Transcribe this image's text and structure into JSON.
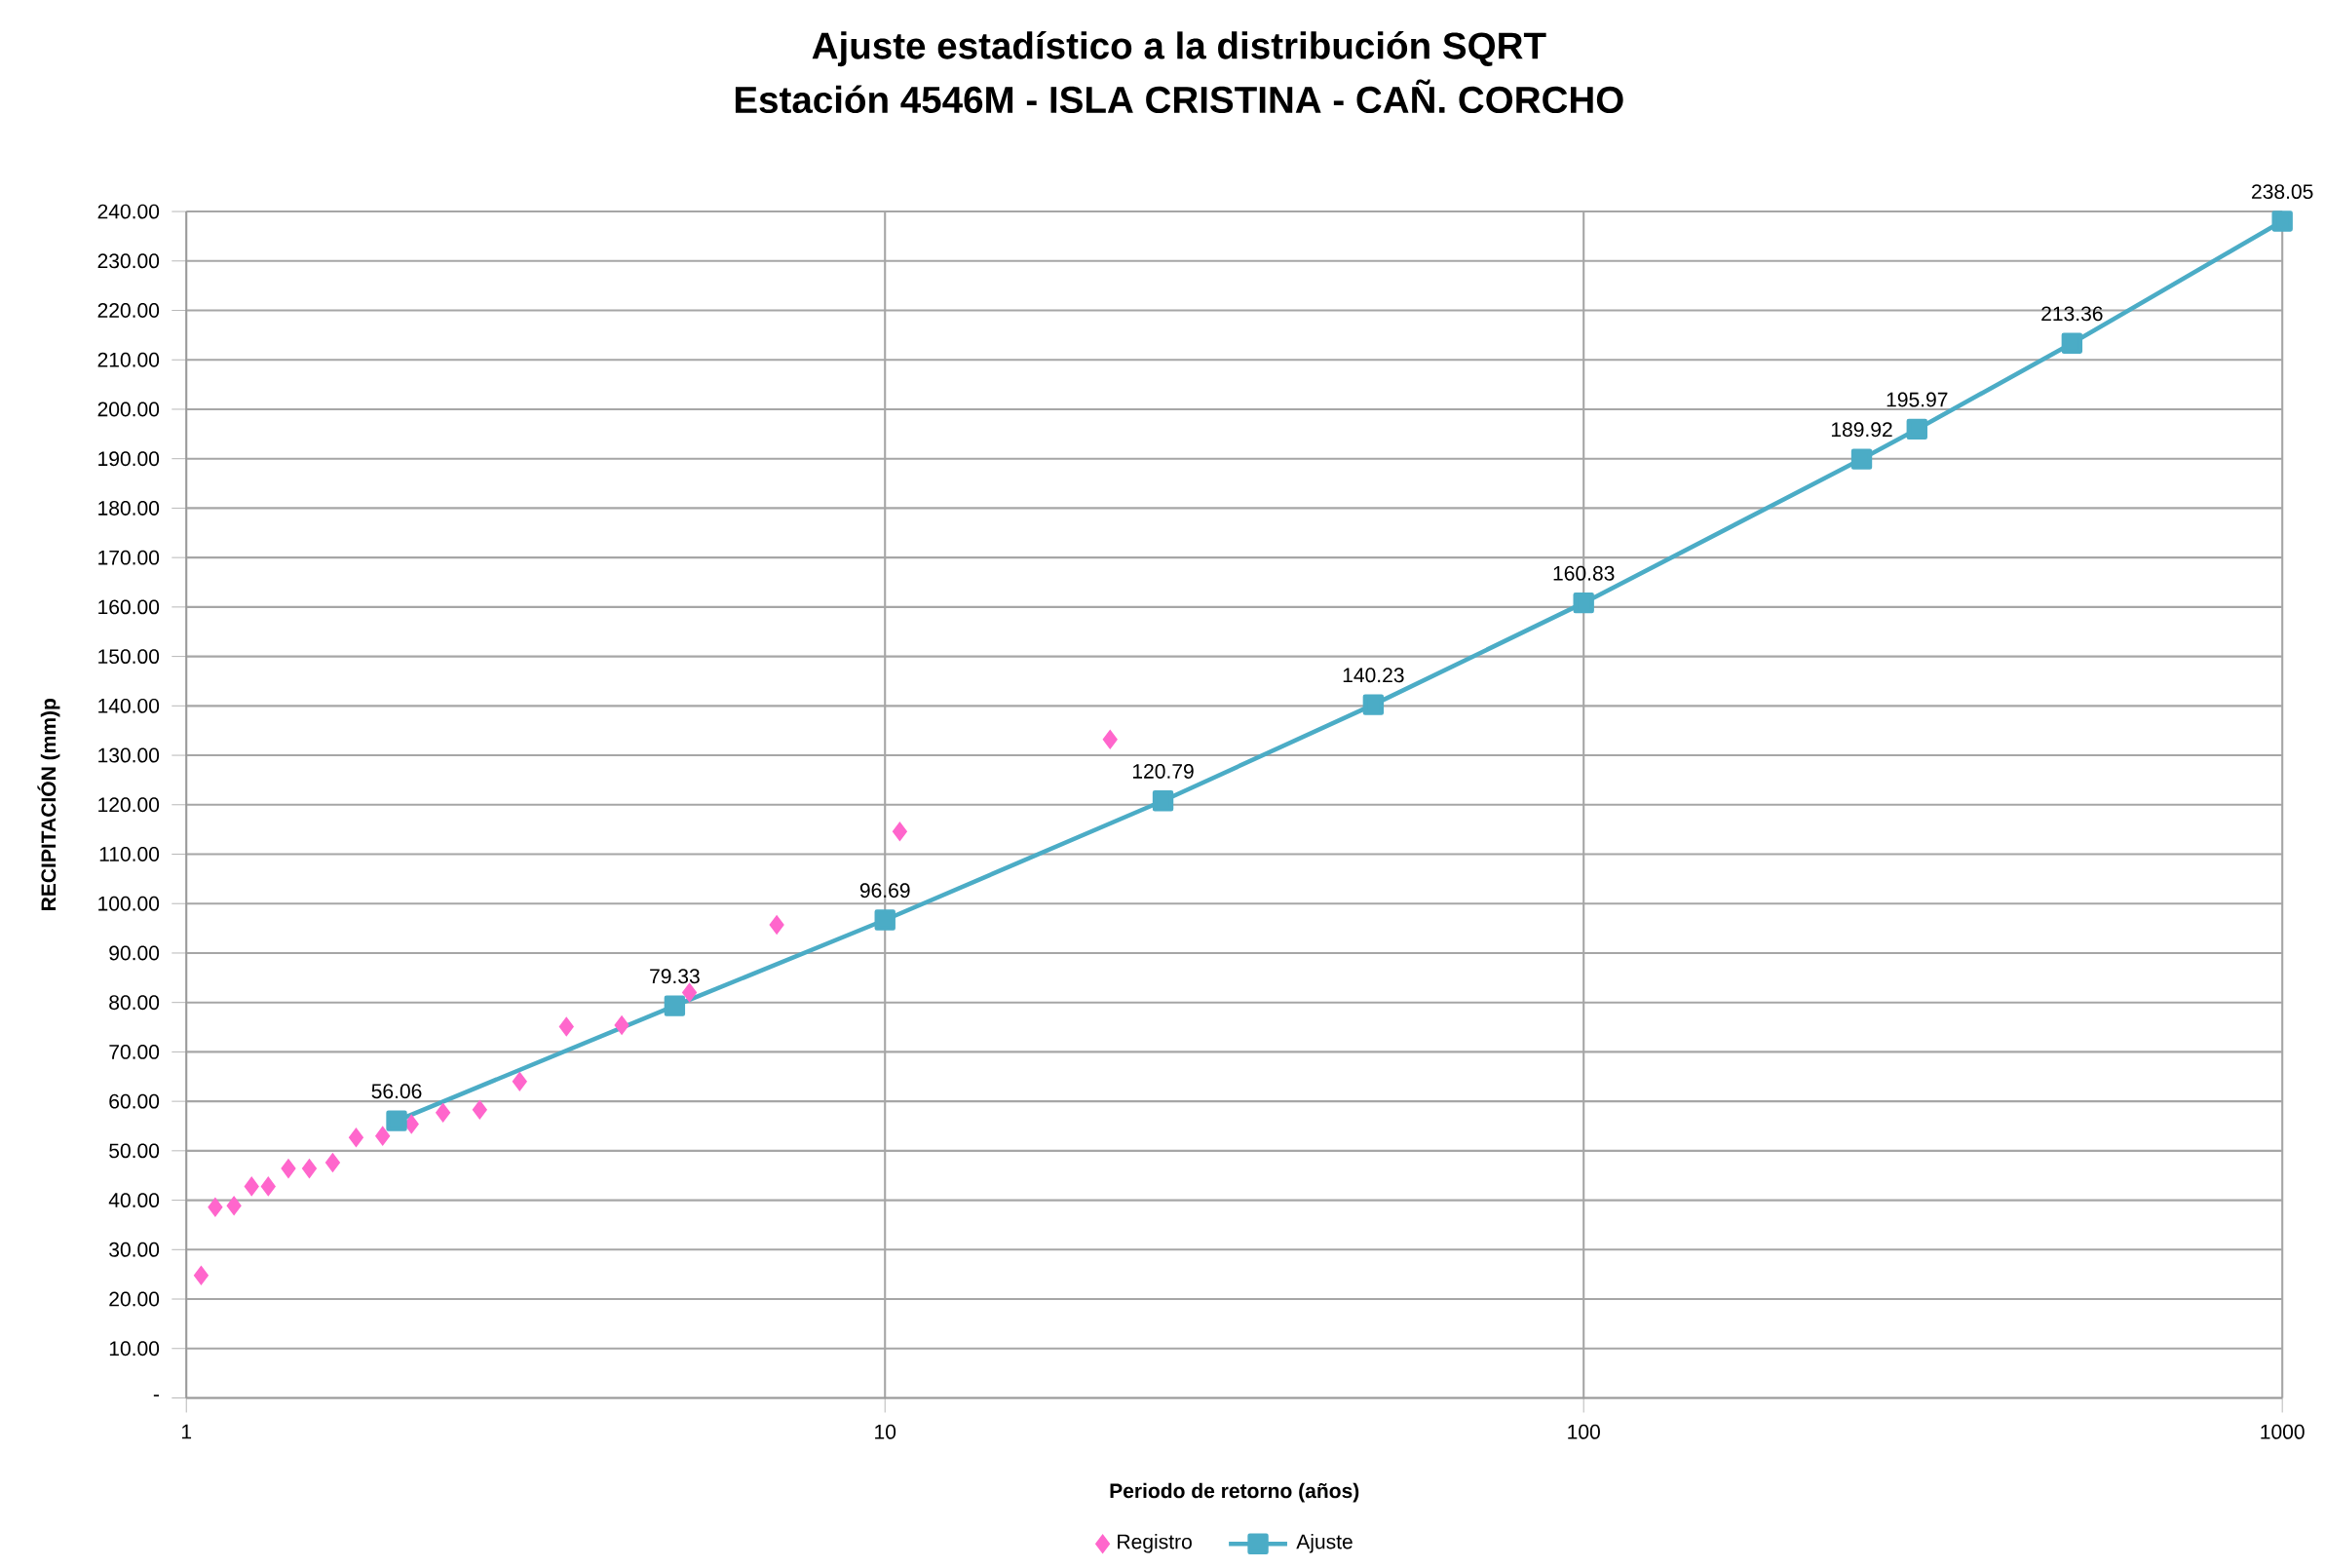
{
  "chart_data": {
    "type": "scatter",
    "title": "Ajuste estadístico a la distribución SQRT",
    "subtitle": "Estación 4546M - ISLA CRISTINA - CAÑ. CORCHO",
    "xlabel": "Periodo de retorno (años)",
    "ylabel": "RECIPITACIÓN (mm)p",
    "log": "x",
    "grid": true,
    "legend": "bottom",
    "xlim": [
      1,
      1000
    ],
    "ylim": [
      0,
      240
    ],
    "xticks": [
      1,
      10,
      100,
      1000
    ],
    "yticks": [
      {
        "value": 0,
        "label": "-"
      },
      {
        "value": 10,
        "label": "10.00"
      },
      {
        "value": 20,
        "label": "20.00"
      },
      {
        "value": 30,
        "label": "30.00"
      },
      {
        "value": 40,
        "label": "40.00"
      },
      {
        "value": 50,
        "label": "50.00"
      },
      {
        "value": 60,
        "label": "60.00"
      },
      {
        "value": 70,
        "label": "70.00"
      },
      {
        "value": 80,
        "label": "80.00"
      },
      {
        "value": 90,
        "label": "90.00"
      },
      {
        "value": 100,
        "label": "100.00"
      },
      {
        "value": 110,
        "label": "110.00"
      },
      {
        "value": 120,
        "label": "120.00"
      },
      {
        "value": 130,
        "label": "130.00"
      },
      {
        "value": 140,
        "label": "140.00"
      },
      {
        "value": 150,
        "label": "150.00"
      },
      {
        "value": 160,
        "label": "160.00"
      },
      {
        "value": 170,
        "label": "170.00"
      },
      {
        "value": 180,
        "label": "180.00"
      },
      {
        "value": 190,
        "label": "190.00"
      },
      {
        "value": 200,
        "label": "200.00"
      },
      {
        "value": 210,
        "label": "210.00"
      },
      {
        "value": 220,
        "label": "220.00"
      },
      {
        "value": 230,
        "label": "230.00"
      },
      {
        "value": 240,
        "label": "240.00"
      }
    ],
    "series": [
      {
        "name": "Registro",
        "type": "scatter",
        "marker": "diamond",
        "color": "#ff66cc",
        "x": [
          1.05,
          1.1,
          1.17,
          1.24,
          1.31,
          1.4,
          1.5,
          1.62,
          1.75,
          1.91,
          2.1,
          2.33,
          2.63,
          3,
          3.5,
          4.2,
          5.25,
          7,
          10.5,
          21
        ],
        "values": [
          24.8,
          38.6,
          38.9,
          42.8,
          42.8,
          46.4,
          46.4,
          47.6,
          52.7,
          53.0,
          55.4,
          57.7,
          58.3,
          64.0,
          75.1,
          75.4,
          82.0,
          95.7,
          114.6,
          133.2
        ]
      },
      {
        "name": "Ajuste",
        "type": "line",
        "marker": "square",
        "color": "#4bacc6",
        "x": [
          2,
          5,
          10,
          25,
          50,
          100,
          250,
          300,
          500,
          1000
        ],
        "values": [
          56.06,
          79.33,
          96.69,
          120.79,
          140.23,
          160.83,
          189.92,
          195.97,
          213.36,
          238.05
        ],
        "value_labels": [
          "56.06",
          "79.33",
          "96.69",
          "120.79",
          "140.23",
          "160.83",
          "189.92",
          "195.97",
          "213.36",
          "238.05"
        ]
      }
    ]
  }
}
